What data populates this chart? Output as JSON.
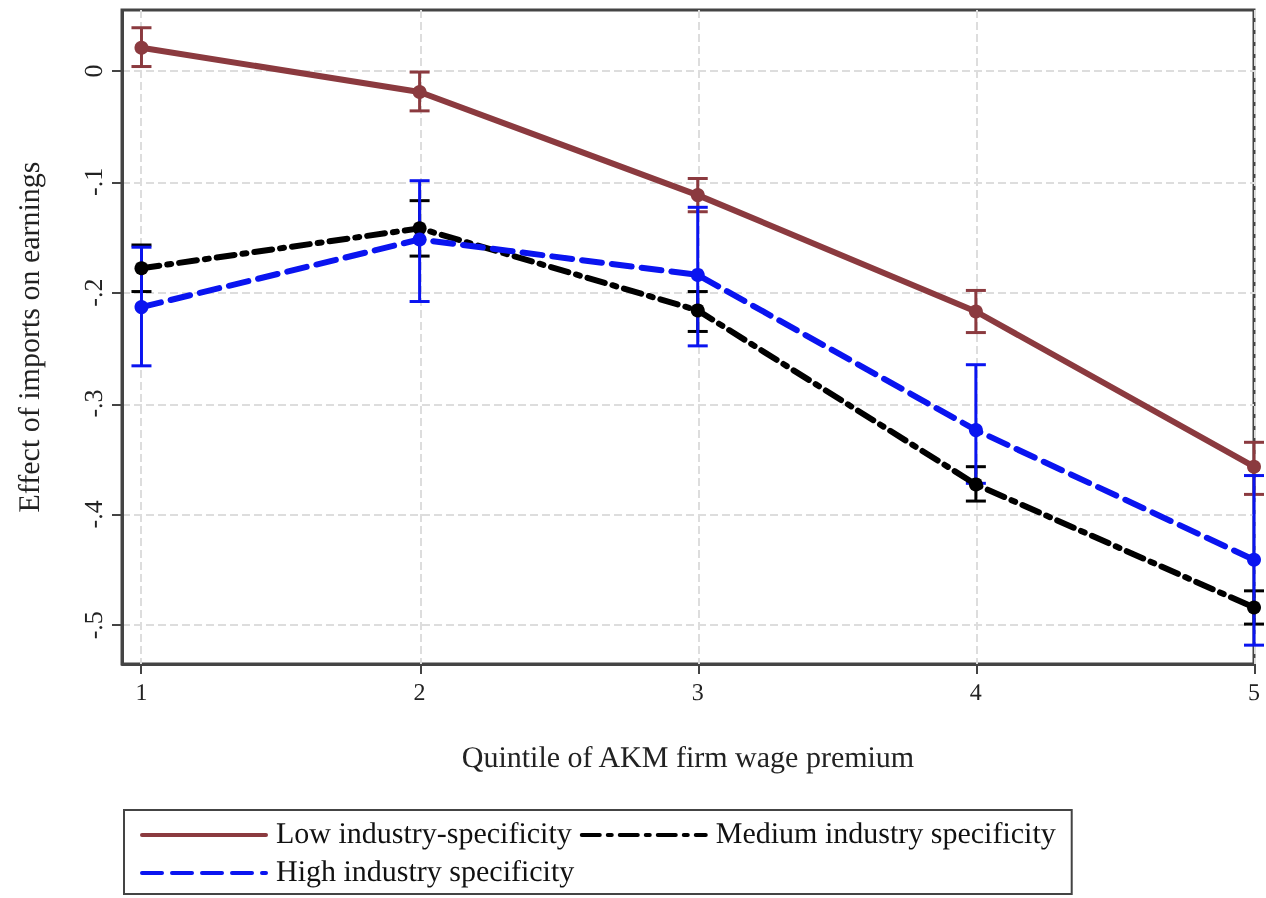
{
  "chart_data": {
    "type": "line",
    "xlabel": "Quintile of AKM firm wage premium",
    "ylabel": "Effect of imports on earnings",
    "x": [
      1,
      2,
      3,
      4,
      5
    ],
    "xlim": [
      0.93,
      5
    ],
    "xticks": [
      1,
      2,
      3,
      4,
      5
    ],
    "ylim": [
      -0.535,
      0.055
    ],
    "yticks": [
      {
        "value": 0,
        "label": "0"
      },
      {
        "value": -0.1,
        "label": "-.1"
      },
      {
        "value": -0.2,
        "label": "-.2"
      },
      {
        "value": -0.3,
        "label": "-.3"
      },
      {
        "value": -0.4,
        "label": "-.4"
      },
      {
        "value": -0.5,
        "label": "-.5"
      }
    ],
    "grid": true,
    "legend": "bottom",
    "marker": "circle",
    "series": [
      {
        "name": "Low industry-specificity",
        "color": "#8b3a3f",
        "line_style": "solid",
        "values": [
          0.021,
          -0.019,
          -0.112,
          -0.217,
          -0.357
        ],
        "errors": [
          [
            0.004,
            0.039
          ],
          [
            -0.036,
            -0.001
          ],
          [
            -0.127,
            -0.097
          ],
          [
            -0.236,
            -0.198
          ],
          [
            -0.382,
            -0.335
          ]
        ]
      },
      {
        "name": "Medium industry specificity",
        "color": "#000000",
        "line_style": "dashdot",
        "values": [
          -0.178,
          -0.142,
          -0.216,
          -0.373,
          -0.484
        ],
        "errors": [
          [
            -0.199,
            -0.157
          ],
          [
            -0.167,
            -0.117
          ],
          [
            -0.235,
            -0.199
          ],
          [
            -0.388,
            -0.357
          ],
          [
            -0.499,
            -0.469
          ]
        ]
      },
      {
        "name": "High industry specificity",
        "color": "#0a14f0",
        "line_style": "dashed",
        "values": [
          -0.213,
          -0.152,
          -0.184,
          -0.324,
          -0.441
        ],
        "errors": [
          [
            -0.266,
            -0.159
          ],
          [
            -0.208,
            -0.099
          ],
          [
            -0.248,
            -0.123
          ],
          [
            -0.372,
            -0.265
          ],
          [
            -0.518,
            -0.365
          ]
        ]
      }
    ]
  }
}
